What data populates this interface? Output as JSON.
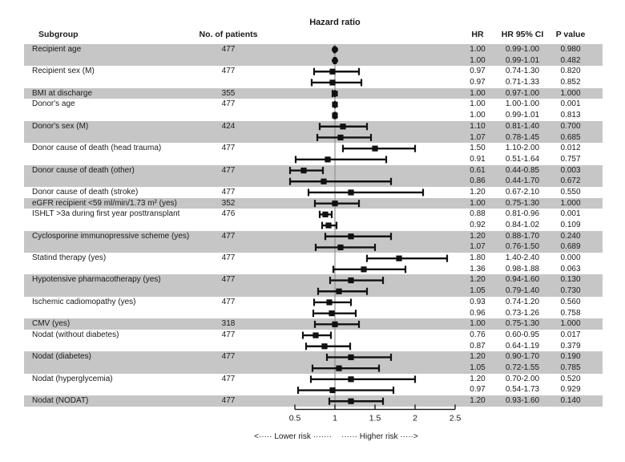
{
  "figure": {
    "title": "Hazard ratio",
    "columns": {
      "subgroup": "Subgroup",
      "patients": "No. of patients",
      "hr": "HR",
      "ci": "HR 95% CI",
      "p": "P value"
    },
    "footer": {
      "lower": "<····· Lower risk ·······",
      "higher": "······ Higher risk ·····>"
    }
  },
  "colors": {
    "band": "#c6c6c6",
    "text": "#1a1a1a",
    "marker": "#111111",
    "ref_line": "#8c8c8c",
    "axis": "#1a1a1a"
  },
  "chart_data": {
    "type": "forest",
    "title": "Hazard ratio",
    "x_axis": {
      "tick_labels": [
        "0.5",
        "1",
        "1.5",
        "2",
        "2.5"
      ],
      "tick_values": [
        0.5,
        1,
        1.5,
        2,
        2.5
      ],
      "range": [
        0.5,
        2.5
      ],
      "reference_line": 1
    },
    "direction_labels": {
      "left": "Lower risk",
      "right": "Higher risk"
    },
    "groups": [
      {
        "label": "Recipient age",
        "n": "477",
        "rows": [
          {
            "hr": "1.00",
            "ci": "0.99-1.00",
            "p": "0.980",
            "point": 1.0,
            "lo": 0.99,
            "hi": 1.0,
            "marker": "circle"
          },
          {
            "hr": "1.00",
            "ci": "0.99-1.01",
            "p": "0.482",
            "point": 1.0,
            "lo": 0.99,
            "hi": 1.01,
            "marker": "circle"
          }
        ]
      },
      {
        "label": "Recipient sex (M)",
        "n": "477",
        "rows": [
          {
            "hr": "0.97",
            "ci": "0.74-1.30",
            "p": "0.820",
            "point": 0.97,
            "lo": 0.74,
            "hi": 1.3,
            "marker": "square"
          },
          {
            "hr": "0.97",
            "ci": "0.71-1.33",
            "p": "0.852",
            "point": 0.97,
            "lo": 0.71,
            "hi": 1.33,
            "marker": "square"
          }
        ]
      },
      {
        "label": "BMI at discharge",
        "n": "355",
        "rows": [
          {
            "hr": "1.00",
            "ci": "0.97-1.00",
            "p": "1.000",
            "point": 1.0,
            "lo": 0.97,
            "hi": 1.0,
            "marker": "square"
          }
        ]
      },
      {
        "label": "Donor's age",
        "n": "477",
        "rows": [
          {
            "hr": "1.00",
            "ci": "1.00-1.00",
            "p": "0.001",
            "point": 1.0,
            "lo": 1.0,
            "hi": 1.0,
            "marker": "square"
          },
          {
            "hr": "1.00",
            "ci": "0.99-1.01",
            "p": "0.813",
            "point": 1.0,
            "lo": 0.99,
            "hi": 1.01,
            "marker": "square"
          }
        ]
      },
      {
        "label": "Donor's sex (M)",
        "n": "424",
        "rows": [
          {
            "hr": "1.10",
            "ci": "0.81-1.40",
            "p": "0.700",
            "point": 1.1,
            "lo": 0.81,
            "hi": 1.4,
            "marker": "square"
          },
          {
            "hr": "1.07",
            "ci": "0.78-1.45",
            "p": "0.685",
            "point": 1.07,
            "lo": 0.78,
            "hi": 1.45,
            "marker": "square"
          }
        ]
      },
      {
        "label": "Donor cause of death (head trauma)",
        "n": "477",
        "rows": [
          {
            "hr": "1.50",
            "ci": "1.10-2.00",
            "p": "0.012",
            "point": 1.5,
            "lo": 1.1,
            "hi": 2.0,
            "marker": "square"
          },
          {
            "hr": "0.91",
            "ci": "0.51-1.64",
            "p": "0.757",
            "point": 0.91,
            "lo": 0.51,
            "hi": 1.64,
            "marker": "square"
          }
        ]
      },
      {
        "label": "Donor cause of death (other)",
        "n": "477",
        "rows": [
          {
            "hr": "0.61",
            "ci": "0.44-0.85",
            "p": "0.003",
            "point": 0.61,
            "lo": 0.44,
            "hi": 0.85,
            "marker": "square"
          },
          {
            "hr": "0.86",
            "ci": "0.44-1.70",
            "p": "0.672",
            "point": 0.86,
            "lo": 0.44,
            "hi": 1.7,
            "marker": "square"
          }
        ]
      },
      {
        "label": "Donor cause of death (stroke)",
        "n": "477",
        "rows": [
          {
            "hr": "1.20",
            "ci": "0.67-2.10",
            "p": "0.550",
            "point": 1.2,
            "lo": 0.67,
            "hi": 2.1,
            "marker": "square"
          }
        ]
      },
      {
        "label": "eGFR recipient <59 ml/min/1.73 m² (yes)",
        "n": "352",
        "rows": [
          {
            "hr": "1.00",
            "ci": "0.75-1.30",
            "p": "1.000",
            "point": 1.0,
            "lo": 0.75,
            "hi": 1.3,
            "marker": "square"
          }
        ]
      },
      {
        "label": "ISHLT >3a during first year posttransplant",
        "n": "476",
        "rows": [
          {
            "hr": "0.88",
            "ci": "0.81-0.96",
            "p": "0.001",
            "point": 0.88,
            "lo": 0.81,
            "hi": 0.96,
            "marker": "square"
          },
          {
            "hr": "0.92",
            "ci": "0.84-1.02",
            "p": "0.109",
            "point": 0.92,
            "lo": 0.84,
            "hi": 1.02,
            "marker": "square"
          }
        ]
      },
      {
        "label": "Cyclosporine immunopressive scheme (yes)",
        "n": "477",
        "rows": [
          {
            "hr": "1.20",
            "ci": "0.88-1.70",
            "p": "0.240",
            "point": 1.2,
            "lo": 0.88,
            "hi": 1.7,
            "marker": "square"
          },
          {
            "hr": "1.07",
            "ci": "0.76-1.50",
            "p": "0.689",
            "point": 1.07,
            "lo": 0.76,
            "hi": 1.5,
            "marker": "square"
          }
        ]
      },
      {
        "label": "Statind therapy (yes)",
        "n": "477",
        "rows": [
          {
            "hr": "1.80",
            "ci": "1.40-2.40",
            "p": "0.000",
            "point": 1.8,
            "lo": 1.4,
            "hi": 2.4,
            "marker": "square"
          },
          {
            "hr": "1.36",
            "ci": "0.98-1.88",
            "p": "0.063",
            "point": 1.36,
            "lo": 0.98,
            "hi": 1.88,
            "marker": "square"
          }
        ]
      },
      {
        "label": "Hypotensive pharmacotherapy (yes)",
        "n": "477",
        "rows": [
          {
            "hr": "1.20",
            "ci": "0.94-1.60",
            "p": "0.130",
            "point": 1.2,
            "lo": 0.94,
            "hi": 1.6,
            "marker": "square"
          },
          {
            "hr": "1.05",
            "ci": "0.79-1.40",
            "p": "0.730",
            "point": 1.05,
            "lo": 0.79,
            "hi": 1.4,
            "marker": "square"
          }
        ]
      },
      {
        "label": "Ischemic cadiomopathy (yes)",
        "n": "477",
        "rows": [
          {
            "hr": "0.93",
            "ci": "0.74-1.20",
            "p": "0.560",
            "point": 0.93,
            "lo": 0.74,
            "hi": 1.2,
            "marker": "square"
          },
          {
            "hr": "0.96",
            "ci": "0.73-1.26",
            "p": "0.758",
            "point": 0.96,
            "lo": 0.73,
            "hi": 1.26,
            "marker": "square"
          }
        ]
      },
      {
        "label": "CMV (yes)",
        "n": "318",
        "rows": [
          {
            "hr": "1.00",
            "ci": "0.75-1.30",
            "p": "1.000",
            "point": 1.0,
            "lo": 0.75,
            "hi": 1.3,
            "marker": "square"
          }
        ]
      },
      {
        "label": "Nodat (without diabetes)",
        "n": "477",
        "rows": [
          {
            "hr": "0.76",
            "ci": "0.60-0.95",
            "p": "0.017",
            "point": 0.76,
            "lo": 0.6,
            "hi": 0.95,
            "marker": "square"
          },
          {
            "hr": "0.87",
            "ci": "0.64-1.19",
            "p": "0.379",
            "point": 0.87,
            "lo": 0.64,
            "hi": 1.19,
            "marker": "square"
          }
        ]
      },
      {
        "label": "Nodat (diabetes)",
        "n": "477",
        "rows": [
          {
            "hr": "1.20",
            "ci": "0.90-1.70",
            "p": "0.190",
            "point": 1.2,
            "lo": 0.9,
            "hi": 1.7,
            "marker": "square"
          },
          {
            "hr": "1.05",
            "ci": "0.72-1.55",
            "p": "0.785",
            "point": 1.05,
            "lo": 0.72,
            "hi": 1.55,
            "marker": "square"
          }
        ]
      },
      {
        "label": "Nodat (hyperglycemia)",
        "n": "477",
        "rows": [
          {
            "hr": "1.20",
            "ci": "0.70-2.00",
            "p": "0.520",
            "point": 1.2,
            "lo": 0.7,
            "hi": 2.0,
            "marker": "square"
          },
          {
            "hr": "0.97",
            "ci": "0.54-1.73",
            "p": "0.929",
            "point": 0.97,
            "lo": 0.54,
            "hi": 1.73,
            "marker": "square"
          }
        ]
      },
      {
        "label": "Nodat (NODAT)",
        "n": "477",
        "rows": [
          {
            "hr": "1.20",
            "ci": "0.93-1.60",
            "p": "0.140",
            "point": 1.2,
            "lo": 0.93,
            "hi": 1.6,
            "marker": "square"
          }
        ]
      }
    ]
  }
}
